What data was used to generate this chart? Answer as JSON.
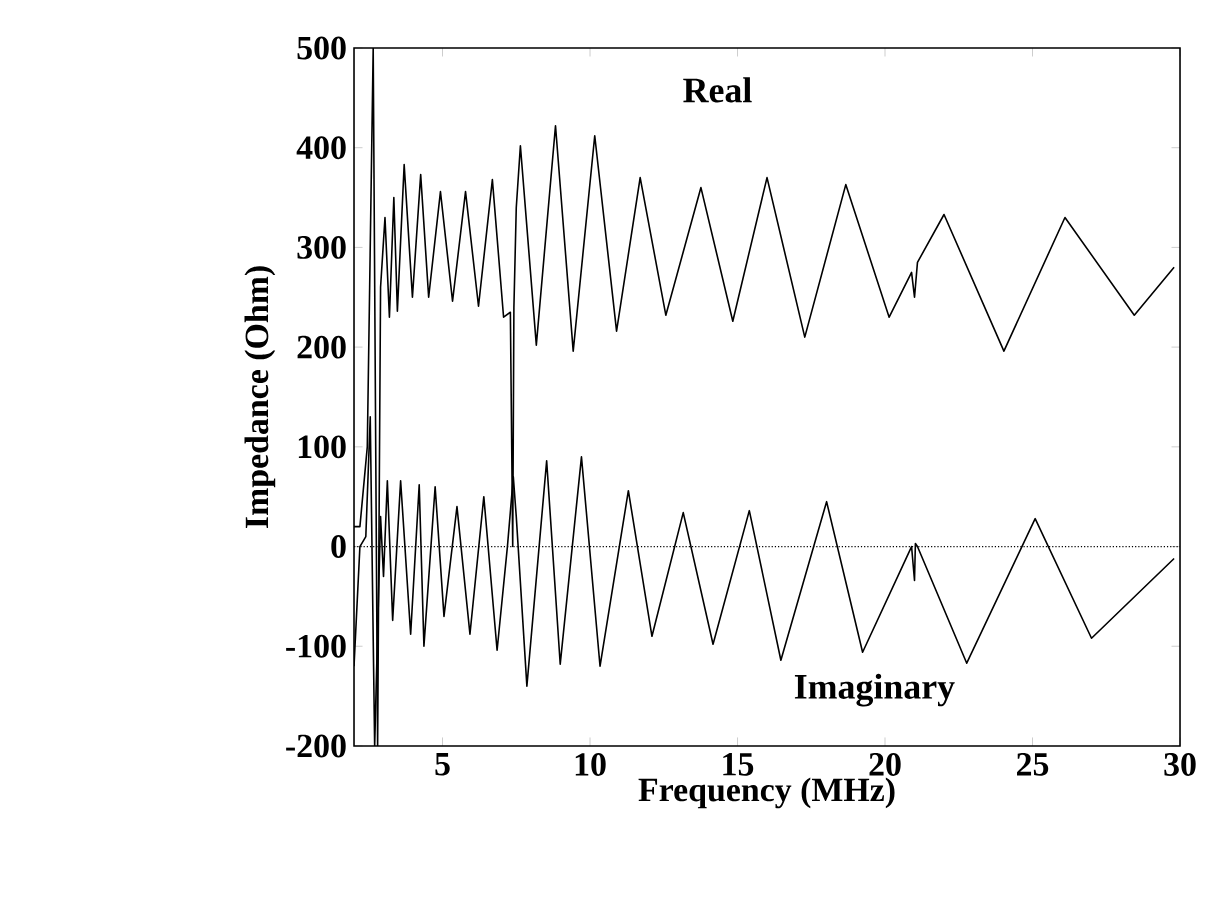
{
  "chart_data": {
    "type": "line",
    "xlabel": "Frequency (MHz)",
    "ylabel": "Impedance (Ohm)",
    "xlim": [
      2,
      30
    ],
    "ylim": [
      -200,
      500
    ],
    "xticks": [
      5,
      10,
      15,
      20,
      25,
      30
    ],
    "yticks": [
      -200,
      -100,
      0,
      100,
      200,
      300,
      400,
      500
    ],
    "grid": false,
    "legend": false,
    "marker": "none",
    "line_style": "solid",
    "ref_lines": [
      {
        "axis": "y",
        "value": 0,
        "line_style": "dotted",
        "color": "#000000"
      }
    ],
    "series": [
      {
        "name": "Real",
        "color": "#000000",
        "x": [
          2.0,
          2.2,
          2.45,
          2.65,
          2.8,
          2.9,
          3.05,
          3.2,
          3.35,
          3.47,
          3.7,
          3.98,
          4.26,
          4.53,
          4.93,
          5.34,
          5.78,
          6.22,
          6.69,
          7.07,
          7.3,
          7.38,
          7.42,
          7.5,
          7.64,
          8.18,
          8.83,
          9.43,
          10.16,
          10.9,
          11.7,
          12.57,
          13.76,
          14.84,
          16.0,
          17.28,
          18.67,
          20.14,
          20.9,
          21.0,
          21.1,
          22.0,
          24.03,
          26.1,
          28.45,
          29.8
        ],
        "values": [
          20,
          20,
          100,
          500,
          -200,
          260,
          330,
          230,
          350,
          236,
          383,
          250,
          373,
          250,
          356,
          246,
          356,
          241,
          368,
          230,
          235,
          0,
          240,
          340,
          402,
          202,
          422,
          196,
          412,
          216,
          370,
          232,
          360,
          226,
          370,
          210,
          363,
          230,
          275,
          250,
          285,
          333,
          196,
          330,
          232,
          280
        ]
      },
      {
        "name": "Imaginary",
        "color": "#000000",
        "x": [
          2.0,
          2.2,
          2.4,
          2.55,
          2.7,
          2.9,
          3.0,
          3.13,
          3.31,
          3.58,
          3.92,
          4.21,
          4.37,
          4.75,
          5.05,
          5.49,
          5.93,
          6.4,
          6.85,
          7.2,
          7.4,
          7.5,
          7.86,
          8.53,
          8.99,
          9.71,
          10.34,
          11.3,
          12.1,
          13.16,
          14.17,
          15.4,
          16.47,
          18.02,
          19.24,
          20.9,
          21.0,
          21.03,
          21.1,
          22.77,
          25.09,
          27.0,
          29.8
        ],
        "values": [
          -120,
          0,
          10,
          130,
          -200,
          30,
          -30,
          66,
          -74,
          66,
          -88,
          62,
          -100,
          60,
          -70,
          40,
          -88,
          50,
          -104,
          0,
          70,
          30,
          -140,
          86,
          -118,
          90,
          -120,
          56,
          -90,
          34,
          -98,
          36,
          -114,
          45,
          -106,
          0,
          -34,
          3,
          0,
          -117,
          28,
          -92,
          -12
        ]
      }
    ]
  }
}
